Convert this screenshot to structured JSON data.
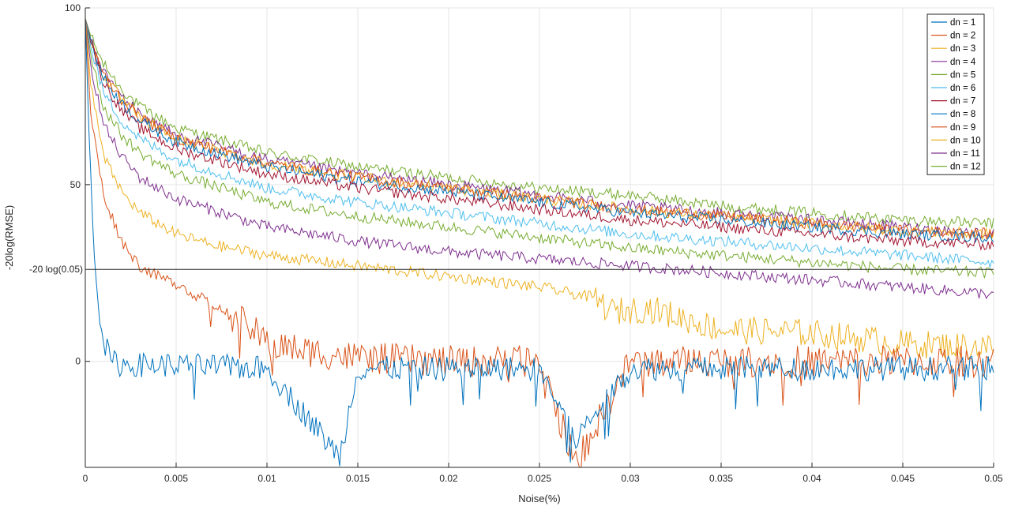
{
  "chart_data": {
    "type": "line",
    "xlabel": "Noise(%)",
    "ylabel": "-20log(RMSE)",
    "xlim": [
      0,
      0.05
    ],
    "ylim": [
      -30,
      100
    ],
    "xticks": [
      0,
      0.005,
      0.01,
      0.015,
      0.02,
      0.025,
      0.03,
      0.035,
      0.04,
      0.045,
      0.05
    ],
    "xtick_labels": [
      "0",
      "0.005",
      "0.01",
      "0.015",
      "0.02",
      "0.025",
      "0.03",
      "0.035",
      "0.04",
      "0.045",
      "0.05"
    ],
    "yticks": [
      0,
      50,
      100
    ],
    "ytick_labels": [
      "0",
      "50",
      "100"
    ],
    "reference_line": {
      "label": "-20 log(0.05)",
      "y": 26.02
    },
    "grid": true,
    "legend_position": "top-right",
    "series": [
      {
        "name": "dn = 1",
        "color": "#0072BD",
        "x": [
          0,
          0.0002,
          0.0005,
          0.0008,
          0.001,
          0.0014,
          0.002,
          0.005,
          0.01,
          0.014,
          0.015,
          0.02,
          0.025,
          0.027,
          0.03,
          0.035,
          0.04,
          0.045,
          0.05
        ],
        "y": [
          97,
          65,
          30,
          14,
          6,
          0,
          -1,
          -1,
          -2,
          -27,
          -2,
          -2,
          -2,
          -22,
          -2,
          -2,
          -2,
          -2,
          -2
        ]
      },
      {
        "name": "dn = 2",
        "color": "#D95319",
        "x": [
          0,
          0.0003,
          0.001,
          0.002,
          0.003,
          0.004,
          0.005,
          0.006,
          0.007,
          0.008,
          0.009,
          0.01,
          0.012,
          0.015,
          0.02,
          0.025,
          0.027,
          0.03,
          0.035,
          0.04,
          0.045,
          0.05
        ],
        "y": [
          97,
          70,
          47,
          34,
          27,
          24,
          22,
          19,
          16,
          13,
          10,
          5,
          3,
          1,
          0,
          0,
          -29,
          0,
          0,
          0,
          0,
          0
        ]
      },
      {
        "name": "dn = 3",
        "color": "#EDB120",
        "x": [
          0,
          0.0003,
          0.001,
          0.002,
          0.003,
          0.005,
          0.007,
          0.01,
          0.015,
          0.02,
          0.025,
          0.028,
          0.029,
          0.031,
          0.033,
          0.035,
          0.04,
          0.045,
          0.05
        ],
        "y": [
          97,
          78,
          58,
          48,
          42,
          36,
          33,
          30,
          27,
          24,
          21,
          18,
          14,
          15,
          12,
          9,
          8,
          5,
          4
        ]
      },
      {
        "name": "dn = 4",
        "color": "#7E2F8E",
        "x": [
          0,
          0.0003,
          0.001,
          0.002,
          0.003,
          0.005,
          0.01,
          0.015,
          0.02,
          0.025,
          0.03,
          0.035,
          0.04,
          0.045,
          0.05
        ],
        "y": [
          97,
          84,
          67,
          58,
          52,
          46,
          38,
          34,
          31,
          29,
          27,
          25,
          23,
          21,
          19
        ]
      },
      {
        "name": "dn = 5",
        "color": "#77AC30",
        "x": [
          0,
          0.0003,
          0.001,
          0.002,
          0.003,
          0.005,
          0.01,
          0.015,
          0.02,
          0.025,
          0.03,
          0.035,
          0.04,
          0.045,
          0.05
        ],
        "y": [
          97,
          87,
          72,
          64,
          59,
          53,
          45,
          41,
          38,
          35,
          32,
          30,
          28,
          26,
          25
        ]
      },
      {
        "name": "dn = 6",
        "color": "#4DBEEE",
        "x": [
          0,
          0.0003,
          0.001,
          0.002,
          0.003,
          0.005,
          0.01,
          0.015,
          0.02,
          0.025,
          0.03,
          0.035,
          0.04,
          0.045,
          0.05
        ],
        "y": [
          97,
          89,
          76,
          68,
          63,
          57,
          49,
          45,
          42,
          39,
          36,
          34,
          32,
          30,
          28
        ]
      },
      {
        "name": "dn = 7",
        "color": "#A2142F",
        "x": [
          0,
          0.0003,
          0.001,
          0.002,
          0.003,
          0.005,
          0.01,
          0.015,
          0.02,
          0.025,
          0.03,
          0.035,
          0.04,
          0.045,
          0.05
        ],
        "y": [
          97,
          90,
          79,
          71,
          66,
          60,
          53,
          49,
          46,
          43,
          40,
          38,
          36,
          34,
          33
        ]
      },
      {
        "name": "dn = 8",
        "color": "#0072BD",
        "x": [
          0,
          0.0003,
          0.001,
          0.002,
          0.003,
          0.005,
          0.01,
          0.015,
          0.02,
          0.025,
          0.03,
          0.035,
          0.04,
          0.045,
          0.05
        ],
        "y": [
          97,
          91,
          80,
          73,
          68,
          62,
          55,
          51,
          48,
          45,
          42,
          40,
          38,
          36,
          35
        ]
      },
      {
        "name": "dn = 9",
        "color": "#D95319",
        "x": [
          0,
          0.0003,
          0.001,
          0.002,
          0.003,
          0.005,
          0.01,
          0.015,
          0.02,
          0.025,
          0.03,
          0.035,
          0.04,
          0.045,
          0.05
        ],
        "y": [
          97,
          91,
          81,
          74,
          69,
          63,
          56,
          52,
          49,
          46,
          43,
          41,
          39,
          37,
          36
        ]
      },
      {
        "name": "dn = 10",
        "color": "#EDB120",
        "x": [
          0,
          0.0003,
          0.001,
          0.002,
          0.003,
          0.005,
          0.01,
          0.015,
          0.02,
          0.025,
          0.03,
          0.035,
          0.04,
          0.045,
          0.05
        ],
        "y": [
          97,
          91,
          81,
          74,
          69,
          63,
          56,
          52,
          49,
          46,
          43,
          41,
          39,
          37,
          36
        ]
      },
      {
        "name": "dn = 11",
        "color": "#7E2F8E",
        "x": [
          0,
          0.0003,
          0.001,
          0.002,
          0.003,
          0.005,
          0.01,
          0.015,
          0.02,
          0.025,
          0.03,
          0.035,
          0.04,
          0.045,
          0.05
        ],
        "y": [
          97,
          91,
          82,
          75,
          70,
          64,
          57,
          53,
          50,
          47,
          44,
          42,
          40,
          38,
          36
        ]
      },
      {
        "name": "dn = 12",
        "color": "#77AC30",
        "x": [
          0,
          0.0003,
          0.001,
          0.002,
          0.003,
          0.005,
          0.01,
          0.015,
          0.02,
          0.025,
          0.03,
          0.035,
          0.04,
          0.045,
          0.05
        ],
        "y": [
          97,
          92,
          84,
          77,
          72,
          66,
          59,
          55,
          52,
          49,
          47,
          44,
          42,
          40,
          39
        ]
      }
    ]
  }
}
